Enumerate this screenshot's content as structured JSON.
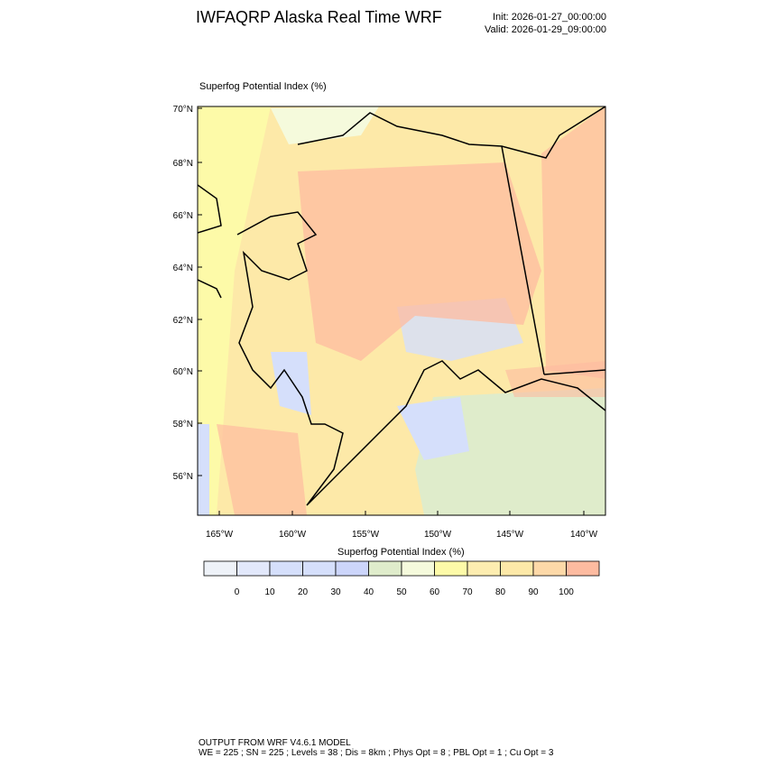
{
  "header": {
    "title": "IWFAQRP Alaska Real Time WRF",
    "init": "Init: 2026-01-27_00:00:00",
    "valid": "Valid: 2026-01-29_09:00:00"
  },
  "map": {
    "field_title": "Superfog Potential Index   (%)",
    "lat_labels": [
      "70°N",
      "68°N",
      "66°N",
      "64°N",
      "62°N",
      "60°N",
      "58°N",
      "56°N"
    ],
    "lon_labels": [
      "165°W",
      "160°W",
      "155°W",
      "150°W",
      "145°W",
      "140°W"
    ],
    "dominant_colors": {
      "high": "#fdbba0",
      "mid": "#fde9a8",
      "ocean_low": "#dfeccb",
      "low": "#d4dffb"
    }
  },
  "colorbar": {
    "title": "Superfog Potential Index  (%)",
    "labels": [
      "0",
      "10",
      "20",
      "30",
      "40",
      "50",
      "60",
      "70",
      "80",
      "90",
      "100"
    ],
    "colors": [
      "#eef2f8",
      "#e2e8fb",
      "#d5dffb",
      "#d5dffb",
      "#ccd5fa",
      "#dfeccb",
      "#f5fadc",
      "#fdfaa8",
      "#fdedb0",
      "#fde9a8",
      "#fdd9a8",
      "#fdbba0"
    ]
  },
  "footer": {
    "line1": "OUTPUT FROM WRF V4.6.1 MODEL",
    "line2": "WE = 225 ; SN = 225 ; Levels = 38 ; Dis = 8km ; Phys Opt = 8 ; PBL Opt = 1 ; Cu Opt = 3"
  }
}
